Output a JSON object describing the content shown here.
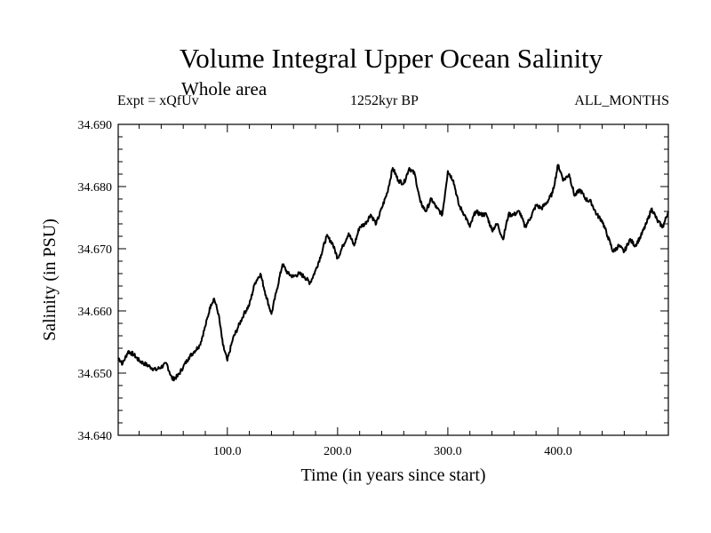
{
  "header": {
    "title": "Volume Integral Upper Ocean Salinity",
    "subtitle": "Whole area",
    "experiment": "Expt = xQfUv",
    "period": "1252kyr BP",
    "months": "ALL_MONTHS"
  },
  "chart_data": {
    "type": "line",
    "title": "Volume Integral Upper Ocean Salinity",
    "xlabel": "Time (in years since start)",
    "ylabel": "Salinity (in PSU)",
    "xlim": [
      1,
      500
    ],
    "ylim": [
      34.64,
      34.69
    ],
    "x_ticks": [
      100,
      200,
      300,
      400
    ],
    "x_tick_labels": [
      "100.0",
      "200.0",
      "300.0",
      "400.0"
    ],
    "y_ticks": [
      34.64,
      34.65,
      34.66,
      34.67,
      34.68,
      34.69
    ],
    "y_tick_labels": [
      "34.640",
      "34.650",
      "34.660",
      "34.670",
      "34.680",
      "34.690"
    ],
    "series": [
      {
        "name": "salinity",
        "color": "#000000",
        "x": [
          1,
          5,
          10,
          15,
          20,
          25,
          30,
          35,
          40,
          45,
          50,
          55,
          60,
          65,
          70,
          75,
          80,
          85,
          88,
          92,
          96,
          100,
          105,
          110,
          115,
          120,
          125,
          130,
          135,
          140,
          145,
          150,
          155,
          160,
          165,
          170,
          175,
          180,
          185,
          190,
          195,
          200,
          205,
          210,
          215,
          220,
          225,
          230,
          235,
          240,
          245,
          250,
          255,
          260,
          265,
          270,
          275,
          280,
          285,
          290,
          295,
          300,
          305,
          310,
          315,
          320,
          325,
          330,
          335,
          340,
          345,
          350,
          355,
          360,
          365,
          370,
          375,
          380,
          385,
          390,
          395,
          400,
          405,
          410,
          415,
          420,
          425,
          430,
          435,
          440,
          445,
          450,
          455,
          460,
          465,
          470,
          475,
          480,
          485,
          490,
          495,
          500
        ],
        "values": [
          34.6525,
          34.6515,
          34.6535,
          34.653,
          34.652,
          34.6515,
          34.651,
          34.6505,
          34.651,
          34.6515,
          34.649,
          34.6495,
          34.651,
          34.6525,
          34.6535,
          34.6545,
          34.6575,
          34.661,
          34.662,
          34.6595,
          34.6545,
          34.652,
          34.6555,
          34.6575,
          34.6595,
          34.661,
          34.6645,
          34.666,
          34.6625,
          34.6595,
          34.6635,
          34.6675,
          34.666,
          34.6655,
          34.666,
          34.6655,
          34.6645,
          34.6665,
          34.669,
          34.672,
          34.671,
          34.6685,
          34.6705,
          34.6725,
          34.6705,
          34.6735,
          34.674,
          34.6755,
          34.674,
          34.6765,
          34.679,
          34.683,
          34.681,
          34.6805,
          34.683,
          34.682,
          34.6775,
          34.676,
          34.678,
          34.6765,
          34.6755,
          34.6825,
          34.681,
          34.677,
          34.6755,
          34.6735,
          34.676,
          34.6755,
          34.6755,
          34.673,
          34.674,
          34.6715,
          34.6755,
          34.6755,
          34.676,
          34.6735,
          34.675,
          34.677,
          34.6765,
          34.6775,
          34.679,
          34.6835,
          34.681,
          34.682,
          34.6785,
          34.6795,
          34.678,
          34.6775,
          34.6755,
          34.6745,
          34.672,
          34.6695,
          34.6705,
          34.6695,
          34.6715,
          34.6705,
          34.672,
          34.674,
          34.6765,
          34.6745,
          34.6735,
          34.676
        ]
      }
    ]
  }
}
